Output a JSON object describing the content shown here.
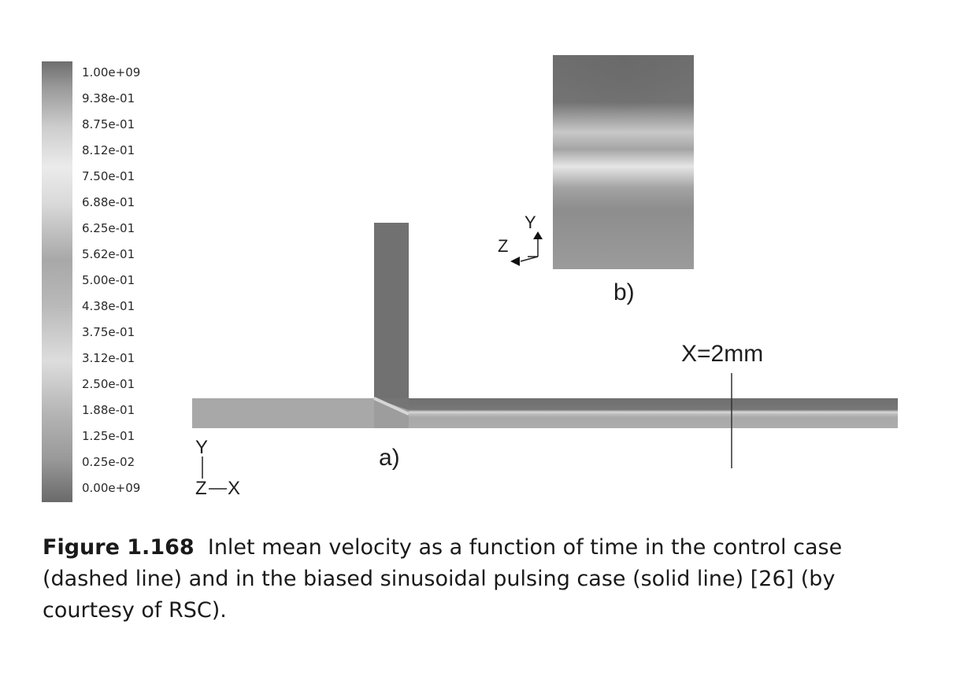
{
  "colorbar": {
    "labels": [
      "1.00e+09",
      "9.38e-01",
      "8.75e-01",
      "8.12e-01",
      "7.50e-01",
      "6.88e-01",
      "6.25e-01",
      "5.62e-01",
      "5.00e-01",
      "4.38e-01",
      "3.75e-01",
      "3.12e-01",
      "2.50e-01",
      "1.88e-01",
      "1.25e-01",
      "0.25e-02",
      "0.00e+09"
    ]
  },
  "panel_a": {
    "label": "a)",
    "marker_label": "X=2mm",
    "axis": {
      "y": "Y",
      "z": "Z",
      "x": "X"
    }
  },
  "panel_b": {
    "label": "b)",
    "axis": {
      "y": "Y",
      "z": "Z"
    }
  },
  "caption": {
    "number": "Figure 1.168",
    "text": "Inlet mean velocity as a function of time in the control case (dashed line) and in the biased sinusoidal pulsing case (solid line) [26] (by courtesy of RSC)."
  }
}
